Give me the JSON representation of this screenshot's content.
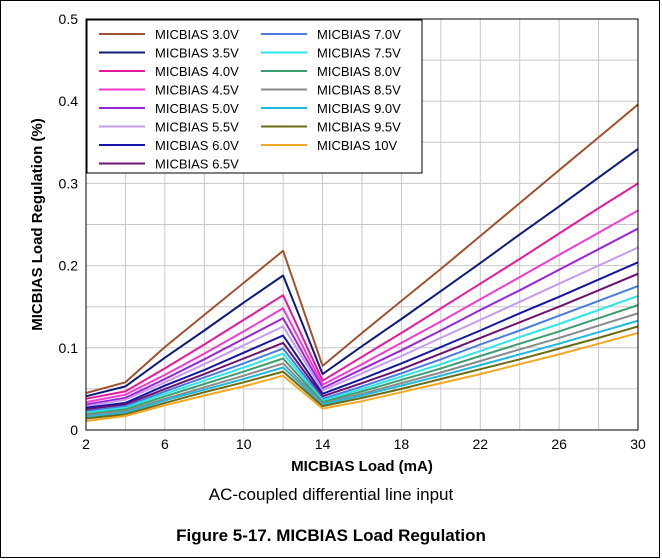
{
  "figure_caption": "Figure 5-17. MICBIAS Load Regulation",
  "note": "AC-coupled differential line input",
  "chart_data": {
    "type": "line",
    "title": "",
    "xlabel": "MICBIAS Load (mA)",
    "ylabel": "MICBIAS Load Regulation (%)",
    "xlim": [
      2,
      30
    ],
    "ylim": [
      0,
      0.5
    ],
    "x_ticks": [
      2,
      6,
      10,
      14,
      18,
      22,
      26,
      30
    ],
    "y_ticks": [
      0,
      0.1,
      0.2,
      0.3,
      0.4,
      0.5
    ],
    "y_tick_labels": [
      "0",
      "0.1",
      "0.2",
      "0.3",
      "0.4",
      "0.5"
    ],
    "grid": true,
    "legend_position": "top-left",
    "x": [
      2,
      4,
      6,
      8,
      10,
      12,
      14,
      16,
      18,
      20,
      22,
      24,
      26,
      28,
      30
    ],
    "series": [
      {
        "name": "MICBIAS 3.0V",
        "color": "#a0522d",
        "values": [
          0.045,
          0.058,
          0.101,
          0.14,
          0.179,
          0.218,
          0.078,
          0.118,
          0.157,
          0.196,
          0.236,
          0.276,
          0.316,
          0.356,
          0.396
        ]
      },
      {
        "name": "MICBIAS 3.5V",
        "color": "#0d1b7a",
        "values": [
          0.041,
          0.053,
          0.088,
          0.121,
          0.155,
          0.188,
          0.068,
          0.102,
          0.135,
          0.169,
          0.203,
          0.238,
          0.272,
          0.307,
          0.342
        ]
      },
      {
        "name": "MICBIAS 4.0V",
        "color": "#e6199b",
        "values": [
          0.038,
          0.047,
          0.075,
          0.104,
          0.134,
          0.164,
          0.06,
          0.089,
          0.118,
          0.148,
          0.178,
          0.208,
          0.239,
          0.27,
          0.3
        ]
      },
      {
        "name": "MICBIAS 4.5V",
        "color": "#f03ad2",
        "values": [
          0.034,
          0.043,
          0.067,
          0.093,
          0.12,
          0.148,
          0.055,
          0.08,
          0.106,
          0.132,
          0.159,
          0.186,
          0.213,
          0.24,
          0.267
        ]
      },
      {
        "name": "MICBIAS 5.0V",
        "color": "#9b24d8",
        "values": [
          0.031,
          0.039,
          0.062,
          0.086,
          0.111,
          0.136,
          0.051,
          0.074,
          0.097,
          0.121,
          0.146,
          0.17,
          0.195,
          0.22,
          0.245
        ]
      },
      {
        "name": "MICBIAS 5.5V",
        "color": "#c59bf0",
        "values": [
          0.029,
          0.037,
          0.058,
          0.08,
          0.103,
          0.126,
          0.048,
          0.069,
          0.09,
          0.112,
          0.134,
          0.156,
          0.178,
          0.2,
          0.222
        ]
      },
      {
        "name": "MICBIAS 6.0V",
        "color": "#1414a8",
        "values": [
          0.027,
          0.033,
          0.054,
          0.073,
          0.094,
          0.115,
          0.044,
          0.062,
          0.081,
          0.101,
          0.121,
          0.142,
          0.162,
          0.183,
          0.204
        ]
      },
      {
        "name": "MICBIAS 6.5V",
        "color": "#6e1270",
        "values": [
          0.025,
          0.031,
          0.05,
          0.068,
          0.087,
          0.106,
          0.041,
          0.057,
          0.074,
          0.093,
          0.112,
          0.131,
          0.15,
          0.17,
          0.19
        ]
      },
      {
        "name": "MICBIAS 7.0V",
        "color": "#4a7be0",
        "values": [
          0.023,
          0.029,
          0.047,
          0.064,
          0.081,
          0.099,
          0.038,
          0.053,
          0.069,
          0.086,
          0.104,
          0.121,
          0.139,
          0.157,
          0.175
        ]
      },
      {
        "name": "MICBIAS 7.5V",
        "color": "#2ee6e6",
        "values": [
          0.021,
          0.027,
          0.044,
          0.06,
          0.076,
          0.093,
          0.036,
          0.05,
          0.065,
          0.08,
          0.096,
          0.113,
          0.129,
          0.146,
          0.163
        ]
      },
      {
        "name": "MICBIAS 8.0V",
        "color": "#3c9e6e",
        "values": [
          0.019,
          0.025,
          0.041,
          0.056,
          0.071,
          0.087,
          0.034,
          0.047,
          0.061,
          0.075,
          0.09,
          0.105,
          0.12,
          0.136,
          0.152
        ]
      },
      {
        "name": "MICBIAS 8.5V",
        "color": "#8a8a8a",
        "values": [
          0.018,
          0.023,
          0.038,
          0.052,
          0.066,
          0.081,
          0.032,
          0.044,
          0.057,
          0.07,
          0.084,
          0.098,
          0.112,
          0.127,
          0.142
        ]
      },
      {
        "name": "MICBIAS 9.0V",
        "color": "#1fb8e0",
        "values": [
          0.016,
          0.021,
          0.036,
          0.049,
          0.062,
          0.076,
          0.031,
          0.042,
          0.054,
          0.066,
          0.079,
          0.092,
          0.105,
          0.119,
          0.133
        ]
      },
      {
        "name": "MICBIAS 9.5V",
        "color": "#6b6b14",
        "values": [
          0.014,
          0.019,
          0.033,
          0.046,
          0.058,
          0.071,
          0.029,
          0.039,
          0.05,
          0.062,
          0.074,
          0.086,
          0.099,
          0.112,
          0.126
        ]
      },
      {
        "name": "MICBIAS 10V",
        "color": "#f5a623",
        "values": [
          0.011,
          0.017,
          0.03,
          0.042,
          0.053,
          0.066,
          0.026,
          0.035,
          0.046,
          0.057,
          0.068,
          0.08,
          0.092,
          0.105,
          0.118
        ]
      }
    ]
  }
}
